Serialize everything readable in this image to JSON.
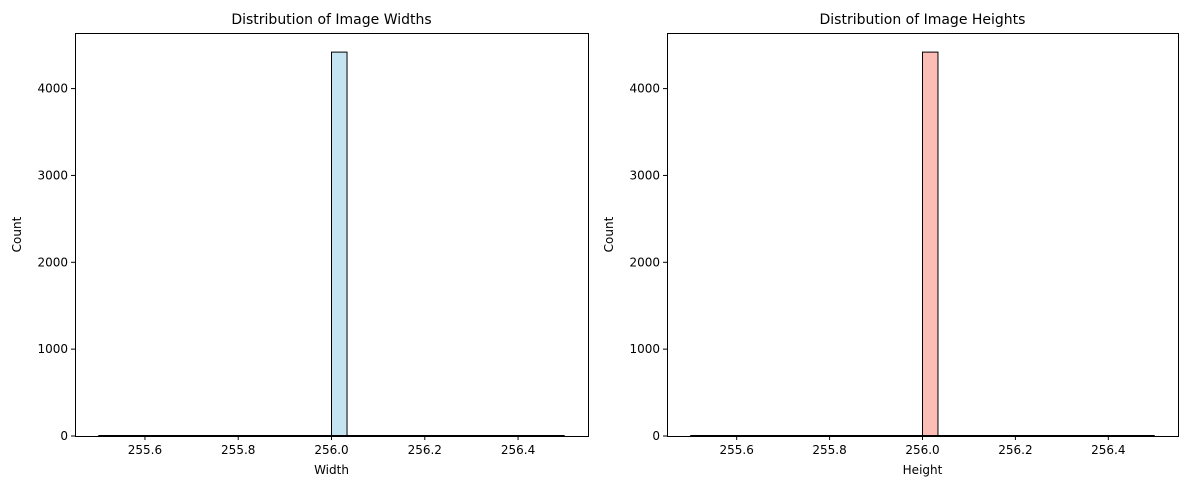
{
  "chart_data": [
    {
      "type": "bar",
      "title": "Distribution of Image Widths",
      "xlabel": "Width",
      "ylabel": "Count",
      "xlim": [
        255.45,
        256.55
      ],
      "ylim": [
        0,
        4640
      ],
      "xticks": [
        255.6,
        255.8,
        256.0,
        256.2,
        256.4
      ],
      "xtick_labels": [
        "255.6",
        "255.8",
        "256.0",
        "256.2",
        "256.4"
      ],
      "yticks": [
        0,
        1000,
        2000,
        3000,
        4000
      ],
      "ytick_labels": [
        "0",
        "1000",
        "2000",
        "3000",
        "4000"
      ],
      "bins": {
        "start": 255.5,
        "end": 256.5,
        "count": 30
      },
      "bars": [
        {
          "x": 256.0,
          "x_end": 256.0333,
          "count": 4420
        }
      ],
      "fill_color": "#c5e4f1",
      "edge_color": "#000000",
      "grid": false
    },
    {
      "type": "bar",
      "title": "Distribution of Image Heights",
      "xlabel": "Height",
      "ylabel": "Count",
      "xlim": [
        255.45,
        256.55
      ],
      "ylim": [
        0,
        4640
      ],
      "xticks": [
        255.6,
        255.8,
        256.0,
        256.2,
        256.4
      ],
      "xtick_labels": [
        "255.6",
        "255.8",
        "256.0",
        "256.2",
        "256.4"
      ],
      "yticks": [
        0,
        1000,
        2000,
        3000,
        4000
      ],
      "ytick_labels": [
        "0",
        "1000",
        "2000",
        "3000",
        "4000"
      ],
      "bins": {
        "start": 255.5,
        "end": 256.5,
        "count": 30
      },
      "bars": [
        {
          "x": 256.0,
          "x_end": 256.0333,
          "count": 4420
        }
      ],
      "fill_color": "#fcbdb6",
      "edge_color": "#000000",
      "grid": false
    }
  ]
}
